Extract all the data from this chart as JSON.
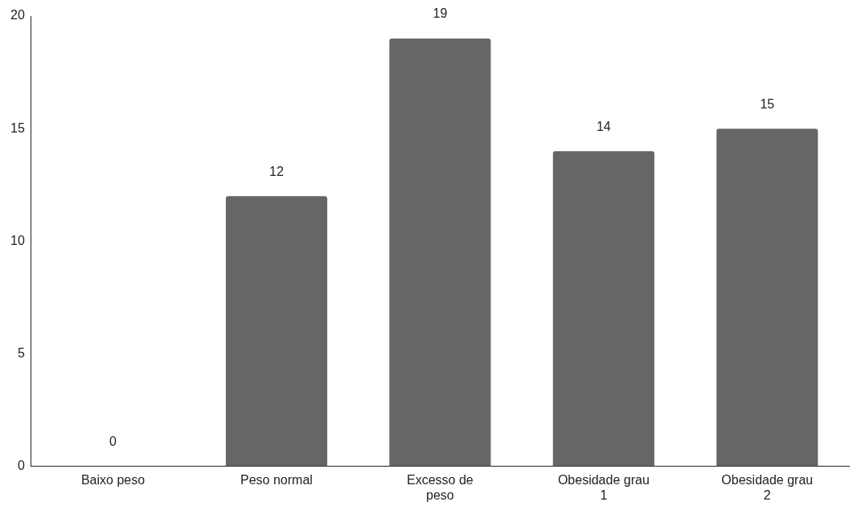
{
  "chart_data": {
    "type": "bar",
    "categories": [
      "Baixo peso",
      "Peso normal",
      "Excesso de peso",
      "Obesidade grau 1",
      "Obesidade grau 2"
    ],
    "values": [
      0,
      12,
      19,
      14,
      15
    ],
    "color": "#666666",
    "ylim": [
      0,
      20
    ],
    "yticks": [
      0,
      5,
      10,
      15,
      20
    ],
    "grid": false,
    "legend": false,
    "data_labels": true
  }
}
